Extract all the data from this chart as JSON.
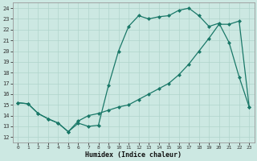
{
  "xlabel": "Humidex (Indice chaleur)",
  "bg_color": "#cce8e2",
  "line_color": "#1a7868",
  "grid_color": "#b0d4cc",
  "xlim": [
    -0.5,
    23.5
  ],
  "ylim": [
    11.5,
    24.5
  ],
  "yticks": [
    12,
    13,
    14,
    15,
    16,
    17,
    18,
    19,
    20,
    21,
    22,
    23,
    24
  ],
  "xticks": [
    0,
    1,
    2,
    3,
    4,
    5,
    6,
    7,
    8,
    9,
    10,
    11,
    12,
    13,
    14,
    15,
    16,
    17,
    18,
    19,
    20,
    21,
    22,
    23
  ],
  "line1_x": [
    0,
    1,
    2,
    3,
    4,
    5,
    6,
    7,
    8,
    9,
    10,
    11,
    12,
    13,
    14,
    15,
    16,
    17,
    18,
    19,
    20,
    21,
    22,
    23
  ],
  "line1_y": [
    15.2,
    15.1,
    14.2,
    13.7,
    13.3,
    12.5,
    13.3,
    13.0,
    13.1,
    16.8,
    20.0,
    22.3,
    23.3,
    23.0,
    23.2,
    23.3,
    23.8,
    24.0,
    23.3,
    22.3,
    22.6,
    20.8,
    17.6,
    14.8
  ],
  "line2_x": [
    0,
    1,
    2,
    3,
    4,
    5,
    6,
    7,
    8,
    9,
    10,
    11,
    12,
    13,
    14,
    15,
    16,
    17,
    18,
    19,
    20,
    21,
    22,
    23
  ],
  "line2_y": [
    15.2,
    15.1,
    14.2,
    13.7,
    13.3,
    12.5,
    13.5,
    14.0,
    14.2,
    14.5,
    14.8,
    15.0,
    15.5,
    16.0,
    16.5,
    17.0,
    17.8,
    18.8,
    20.0,
    21.2,
    22.5,
    22.5,
    22.8,
    14.8
  ]
}
